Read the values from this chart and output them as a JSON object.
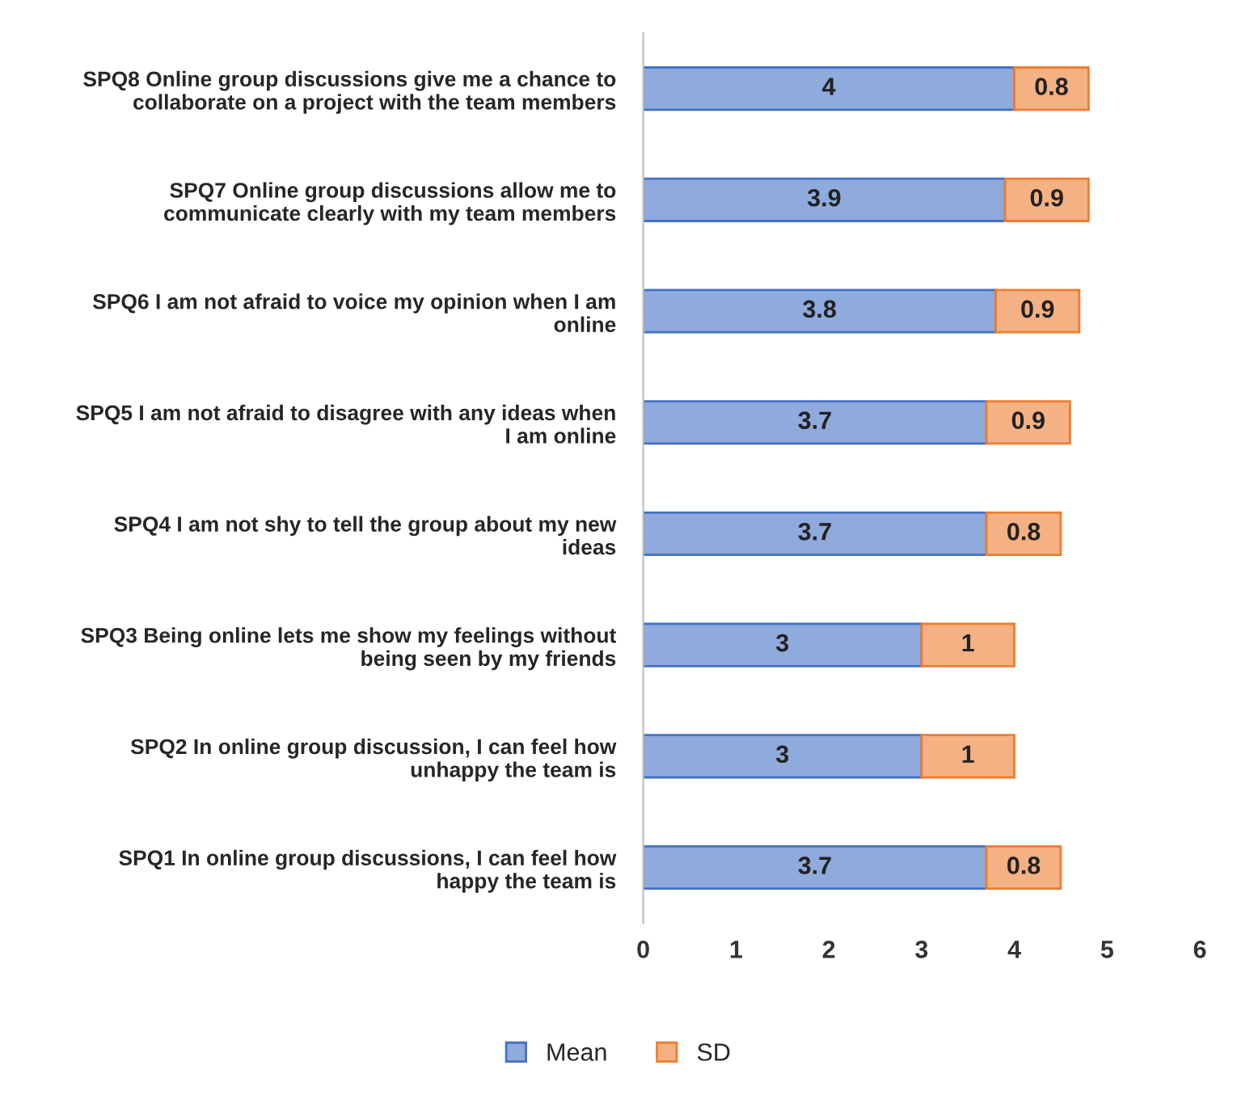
{
  "chart_data": {
    "type": "bar",
    "orientation": "horizontal",
    "stacked": true,
    "categories": [
      "SPQ8 Online group discussions give me a chance to\ncollaborate on a project with the team members",
      "SPQ7 Online group discussions allow me to\ncommunicate clearly with my team members",
      "SPQ6 I am not afraid to voice my opinion when I am\nonline",
      "SPQ5 I am not afraid to disagree with any ideas when\nI am online",
      "SPQ4 I am not shy to tell the group about my new\nideas",
      "SPQ3 Being online lets me show my feelings without\nbeing seen by my friends",
      "SPQ2 In online group discussion, I can feel how\nunhappy the team is",
      "SPQ1 In online group discussions, I can feel how\nhappy the team is"
    ],
    "series": [
      {
        "name": "Mean",
        "color": "#8faadc",
        "values": [
          4,
          3.9,
          3.8,
          3.7,
          3.7,
          3,
          3,
          3.7
        ]
      },
      {
        "name": "SD",
        "color": "#f4b183",
        "values": [
          0.8,
          0.9,
          0.9,
          0.9,
          0.8,
          1,
          1,
          0.8
        ]
      }
    ],
    "xlim": [
      0,
      6
    ],
    "xticks": [
      0,
      1,
      2,
      3,
      4,
      5,
      6
    ],
    "data_labels": true,
    "legend": "bottom",
    "grid": false
  }
}
